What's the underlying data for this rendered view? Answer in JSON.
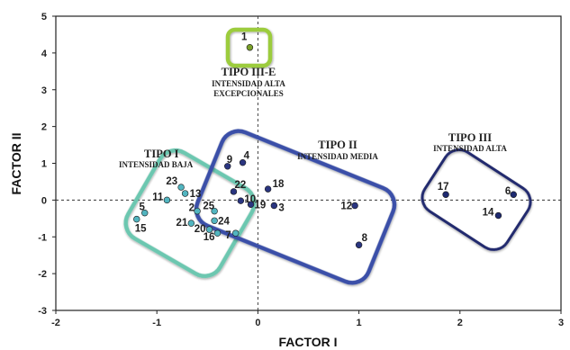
{
  "chart_data": {
    "type": "scatter",
    "xlabel": "FACTOR I",
    "ylabel": "FACTOR II",
    "xlim": [
      -2,
      3
    ],
    "ylim": [
      -3,
      5
    ],
    "x_ticks": [
      "-2",
      "-1",
      "0",
      "1",
      "2",
      "3"
    ],
    "y_ticks": [
      "5",
      "4",
      "3",
      "2",
      "1",
      "0",
      "-1",
      "-2",
      "-3"
    ],
    "reference_lines": {
      "x": 0,
      "y": 0,
      "style": "dashed"
    },
    "points": [
      {
        "label": "1",
        "x": -0.08,
        "y": 4.15,
        "group": "iii-e"
      },
      {
        "label": "4",
        "x": -0.15,
        "y": 1.02,
        "group": "ii"
      },
      {
        "label": "9",
        "x": -0.3,
        "y": 0.92,
        "group": "ii"
      },
      {
        "label": "22",
        "x": -0.24,
        "y": 0.23,
        "group": "ii"
      },
      {
        "label": "18",
        "x": 0.1,
        "y": 0.3,
        "group": "ii"
      },
      {
        "label": "10",
        "x": -0.17,
        "y": -0.02,
        "group": "ii"
      },
      {
        "label": "19",
        "x": -0.07,
        "y": -0.12,
        "group": "ii"
      },
      {
        "label": "3",
        "x": 0.16,
        "y": -0.15,
        "group": "ii"
      },
      {
        "label": "12",
        "x": 0.96,
        "y": -0.15,
        "group": "ii"
      },
      {
        "label": "8",
        "x": 1.0,
        "y": -1.22,
        "group": "ii"
      },
      {
        "label": "17",
        "x": 1.86,
        "y": 0.15,
        "group": "iii"
      },
      {
        "label": "6",
        "x": 2.53,
        "y": 0.15,
        "group": "iii"
      },
      {
        "label": "14",
        "x": 2.38,
        "y": -0.42,
        "group": "iii"
      },
      {
        "label": "23",
        "x": -0.76,
        "y": 0.35,
        "group": "i"
      },
      {
        "label": "11",
        "x": -0.9,
        "y": 0.0,
        "group": "i"
      },
      {
        "label": "13",
        "x": -0.72,
        "y": 0.18,
        "group": "i"
      },
      {
        "label": "5",
        "x": -1.12,
        "y": -0.35,
        "group": "i"
      },
      {
        "label": "15",
        "x": -1.2,
        "y": -0.52,
        "group": "i"
      },
      {
        "label": "2",
        "x": -0.6,
        "y": -0.3,
        "group": "i"
      },
      {
        "label": "21",
        "x": -0.66,
        "y": -0.63,
        "group": "i"
      },
      {
        "label": "25",
        "x": -0.43,
        "y": -0.3,
        "group": "i"
      },
      {
        "label": "24",
        "x": -0.43,
        "y": -0.56,
        "group": "i"
      },
      {
        "label": "20",
        "x": -0.48,
        "y": -0.8,
        "group": "i"
      },
      {
        "label": "16",
        "x": -0.4,
        "y": -0.9,
        "group": "i"
      },
      {
        "label": "7",
        "x": -0.22,
        "y": -0.9,
        "group": "i"
      }
    ],
    "groups": [
      {
        "id": "iii-e",
        "title": "TIPO III-E",
        "subtitle": [
          "INTENSIDAD ALTA",
          "EXCEPCIONALES"
        ],
        "color": "#9ccc3c",
        "point_color": "#7aa02a"
      },
      {
        "id": "i",
        "title": "TIPO I",
        "subtitle": [
          "INTENSIDAD BAJA"
        ],
        "color": "#6cc7b0",
        "point_color": "#52b5c0"
      },
      {
        "id": "ii",
        "title": "TIPO II",
        "subtitle": [
          "INTENSIDAD MEDIA"
        ],
        "color": "#3a4fa8",
        "point_color": "#2a3580"
      },
      {
        "id": "iii",
        "title": "TIPO III",
        "subtitle": [
          "INTENSIDAD ALTA"
        ],
        "color": "#232a6e",
        "point_color": "#1e2a70"
      }
    ]
  }
}
